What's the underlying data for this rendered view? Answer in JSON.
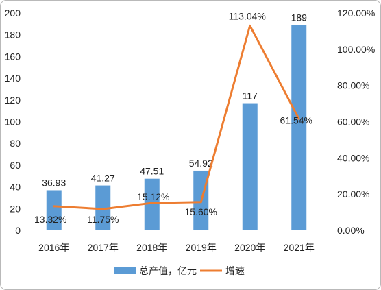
{
  "chart_data": {
    "type": "bar+line",
    "categories": [
      "2016年",
      "2017年",
      "2018年",
      "2019年",
      "2020年",
      "2021年"
    ],
    "series": [
      {
        "name": "总产值，亿元",
        "type": "bar",
        "axis": "left",
        "values": [
          36.93,
          41.27,
          47.51,
          54.92,
          117,
          189
        ],
        "labels": [
          "36.93",
          "41.27",
          "47.51",
          "54.92",
          "117",
          "189"
        ]
      },
      {
        "name": "增速",
        "type": "line",
        "axis": "right",
        "values": [
          13.32,
          11.75,
          15.12,
          15.6,
          113.04,
          61.54
        ],
        "labels": [
          "13.32%",
          "11.75%",
          "15.12%",
          "15.60%",
          "113.04%",
          "61.54%"
        ]
      }
    ],
    "y_left": {
      "min": 0,
      "max": 200,
      "ticks": [
        "0",
        "20",
        "40",
        "60",
        "80",
        "100",
        "120",
        "140",
        "160",
        "180",
        "200"
      ]
    },
    "y_right": {
      "min": 0,
      "max": 120,
      "ticks": [
        "0.00%",
        "20.00%",
        "40.00%",
        "60.00%",
        "80.00%",
        "100.00%",
        "120.00%"
      ]
    },
    "grid": false,
    "legend_position": "bottom"
  },
  "colors": {
    "bar": "#5b9bd5",
    "line": "#ed7d31",
    "text": "#222222",
    "frame": "#b9b9b9"
  }
}
